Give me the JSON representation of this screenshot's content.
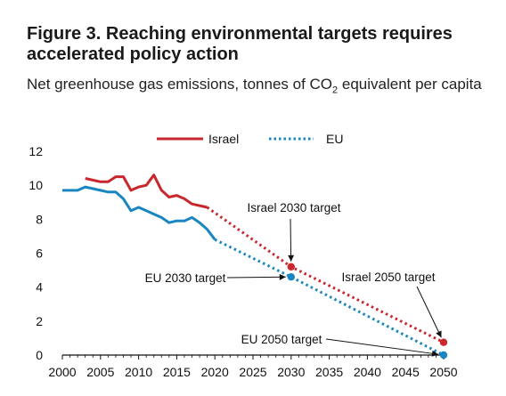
{
  "figure": {
    "title": "Figure 3. Reaching environmental targets requires accelerated policy action",
    "subtitle_pre": "Net greenhouse gas emissions, tonnes of CO",
    "subtitle_sub": "2",
    "subtitle_post": " equivalent per capita"
  },
  "chart_data": {
    "type": "line",
    "xlim": [
      2000,
      2050
    ],
    "ylim": [
      0,
      12
    ],
    "x_ticks": [
      2000,
      2005,
      2010,
      2015,
      2020,
      2025,
      2030,
      2035,
      2040,
      2045,
      2050
    ],
    "y_ticks": [
      0,
      2,
      4,
      6,
      8,
      10,
      12
    ],
    "grid": false,
    "legend_position": "top-center",
    "series": [
      {
        "name": "Israel",
        "color": "#c8282d",
        "style": "solid",
        "x": [
          2003,
          2004,
          2005,
          2006,
          2007,
          2008,
          2009,
          2010,
          2011,
          2012,
          2013,
          2014,
          2015,
          2016,
          2017,
          2018,
          2019
        ],
        "y": [
          10.4,
          10.3,
          10.2,
          10.2,
          10.5,
          10.5,
          9.7,
          9.9,
          10.0,
          10.6,
          9.7,
          9.3,
          9.4,
          9.2,
          8.9,
          8.8,
          8.7
        ]
      },
      {
        "name": "EU",
        "color": "#1a86c1",
        "style": "solid",
        "x": [
          2000,
          2001,
          2002,
          2003,
          2004,
          2005,
          2006,
          2007,
          2008,
          2009,
          2010,
          2011,
          2012,
          2013,
          2014,
          2015,
          2016,
          2017,
          2018,
          2019,
          2020
        ],
        "y": [
          9.7,
          9.7,
          9.7,
          9.9,
          9.8,
          9.7,
          9.6,
          9.6,
          9.2,
          8.5,
          8.7,
          8.5,
          8.3,
          8.1,
          7.8,
          7.9,
          7.9,
          8.1,
          7.8,
          7.4,
          6.8
        ]
      }
    ],
    "projections": [
      {
        "series": "Israel",
        "color": "#c8282d",
        "style": "dotted",
        "x": [
          2019,
          2030,
          2050
        ],
        "y": [
          8.7,
          5.2,
          0.75
        ]
      },
      {
        "series": "EU",
        "color": "#1a86c1",
        "style": "dotted",
        "x": [
          2020,
          2030,
          2050
        ],
        "y": [
          6.8,
          4.6,
          0.0
        ]
      }
    ],
    "targets": [
      {
        "label": "Israel 2030 target",
        "x": 2030,
        "y": 5.2,
        "color": "#c8282d"
      },
      {
        "label": "EU 2030 target",
        "x": 2030,
        "y": 4.6,
        "color": "#1a86c1"
      },
      {
        "label": "Israel 2050 target",
        "x": 2050,
        "y": 0.75,
        "color": "#c8282d"
      },
      {
        "label": "EU 2050 target",
        "x": 2050,
        "y": 0.0,
        "color": "#1a86c1"
      }
    ]
  }
}
